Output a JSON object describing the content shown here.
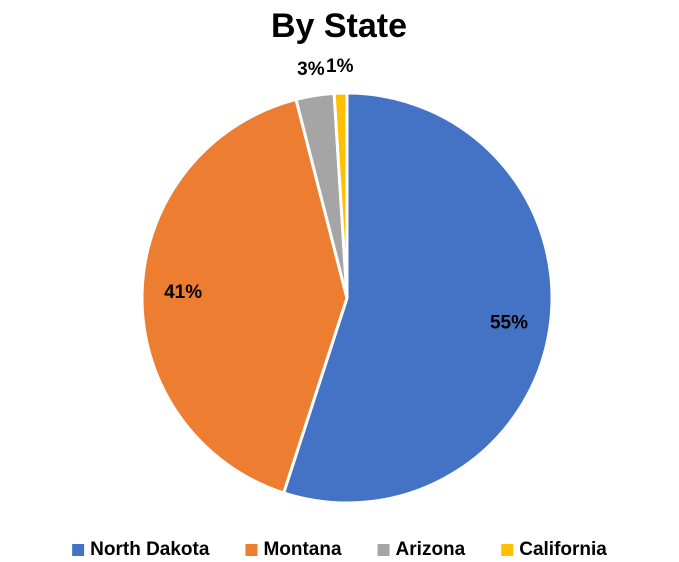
{
  "chart_data": {
    "type": "pie",
    "title": "By State",
    "categories": [
      "North Dakota",
      "Montana",
      "Arizona",
      "California"
    ],
    "values": [
      55,
      41,
      3,
      1
    ],
    "value_labels": [
      "55%",
      "41%",
      "3%",
      "1%"
    ],
    "colors": [
      "#4472c4",
      "#ed7d31",
      "#a5a5a5",
      "#ffc000"
    ],
    "legend": "bottom"
  }
}
